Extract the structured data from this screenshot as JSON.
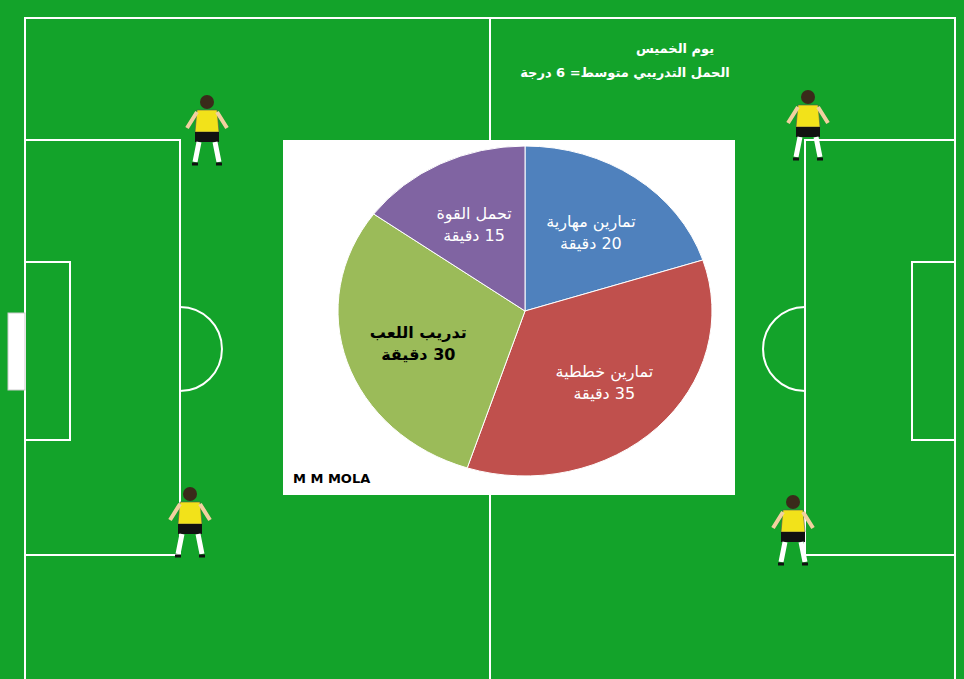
{
  "chart_data": {
    "type": "pie",
    "title": "يوم الخميس",
    "subtitle": "الحمل التدريبي متوسط= 6 درجة",
    "annotation": "M M MOLA",
    "categories": [
      "تمارين مهارية",
      "تمارين خططية",
      "تدريب اللعب",
      "تحمل القوة"
    ],
    "values": [
      20,
      35,
      30,
      15
    ],
    "value_labels": [
      "20 دقيقة",
      "35 دقيقة",
      "30 دقيقة",
      "15 دقيقة"
    ],
    "colors": [
      "#4f81bd",
      "#c0504d",
      "#9bbb59",
      "#8064a2"
    ],
    "data_labels": true
  }
}
